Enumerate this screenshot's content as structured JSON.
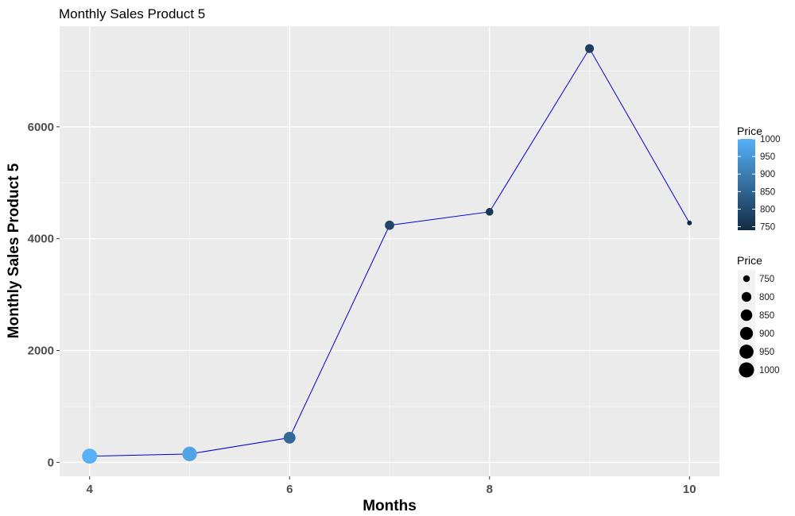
{
  "chart_data": {
    "type": "line",
    "title": "Monthly Sales Product 5",
    "xlabel": "Months",
    "ylabel": "Monthly Sales Product 5",
    "xlim": [
      3.7,
      10.3
    ],
    "ylim": [
      -250,
      7800
    ],
    "xticks": [
      4,
      6,
      8,
      10
    ],
    "yticks": [
      0,
      2000,
      4000,
      6000
    ],
    "grid": true,
    "line_color": "#0000CD",
    "panel_color": "#EBEBEB",
    "series": [
      {
        "x": [
          4,
          5,
          6,
          7,
          8,
          9,
          10
        ],
        "y": [
          110,
          150,
          440,
          4240,
          4480,
          7400,
          4280
        ],
        "price": [
          1000,
          975,
          860,
          790,
          760,
          780,
          740
        ]
      }
    ],
    "color_legend": {
      "title": "Price",
      "range": [
        740,
        1000
      ],
      "ticks": [
        1000,
        950,
        900,
        850,
        800,
        750
      ],
      "low_color": "#132B43",
      "high_color": "#56B1F7"
    },
    "size_legend": {
      "title": "Price",
      "range": [
        740,
        1000
      ],
      "entries": [
        750,
        800,
        850,
        900,
        950,
        1000
      ]
    }
  }
}
